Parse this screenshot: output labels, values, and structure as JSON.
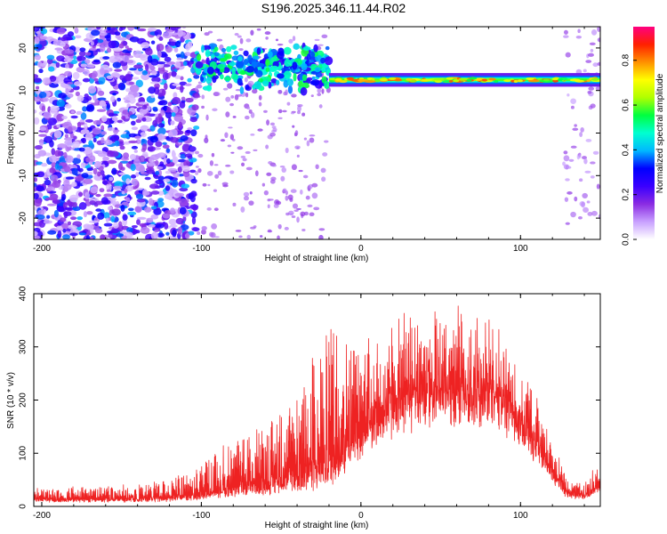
{
  "title": "S196.2025.346.11.44.R02",
  "chart_data": [
    {
      "type": "heatmap",
      "xlabel": "Height of straight line (km)",
      "ylabel": "Frequency (Hz)",
      "xlim": [
        -205,
        150
      ],
      "ylim": [
        -25,
        25
      ],
      "xticks": [
        -200,
        -100,
        0,
        100
      ],
      "yticks": [
        -20,
        -10,
        0,
        10,
        20
      ],
      "colorbar": {
        "label": "Normalized spectral amplitude",
        "range": [
          0.0,
          0.95
        ],
        "ticks": [
          "0.0",
          "0.2",
          "0.4",
          "0.6",
          "0.8"
        ],
        "tick_values": [
          0.0,
          0.2,
          0.4,
          0.6,
          0.8
        ],
        "colors": [
          "#ffffff",
          "#c8a0ff",
          "#8a2be2",
          "#3a00ff",
          "#0000ff",
          "#00b8ff",
          "#00ffd0",
          "#00ff40",
          "#b0ff00",
          "#ffff00",
          "#ff9000",
          "#ff2000",
          "#ff0080"
        ]
      },
      "features": {
        "noise_region_km": [
          -205,
          -103
        ],
        "transition_region_km": [
          -103,
          -20
        ],
        "signal_band_km": [
          -20,
          150
        ],
        "signal_frequency_hz": 12.5
      }
    },
    {
      "type": "line",
      "xlabel": "Height of straight line (km)",
      "ylabel": "SNR (10 * v/v)",
      "xlim": [
        -205,
        150
      ],
      "ylim": [
        0,
        400
      ],
      "xticks": [
        -200,
        -100,
        0,
        100
      ],
      "yticks": [
        0,
        100,
        200,
        300,
        400
      ],
      "color": "#ee2222",
      "envelope": {
        "x": [
          -205,
          -170,
          -140,
          -120,
          -100,
          -85,
          -70,
          -55,
          -45,
          -35,
          -25,
          -15,
          -8,
          0,
          10,
          25,
          40,
          55,
          70,
          85,
          100,
          110,
          120,
          128,
          135,
          142,
          150
        ],
        "baseline": [
          12,
          12,
          12,
          13,
          18,
          25,
          30,
          35,
          50,
          40,
          50,
          70,
          100,
          140,
          170,
          210,
          235,
          245,
          240,
          220,
          180,
          130,
          70,
          30,
          20,
          25,
          45
        ],
        "peak": [
          35,
          40,
          45,
          50,
          80,
          120,
          140,
          170,
          200,
          260,
          330,
          370,
          350,
          320,
          340,
          370,
          390,
          395,
          390,
          360,
          300,
          230,
          130,
          60,
          45,
          60,
          85
        ]
      }
    }
  ]
}
